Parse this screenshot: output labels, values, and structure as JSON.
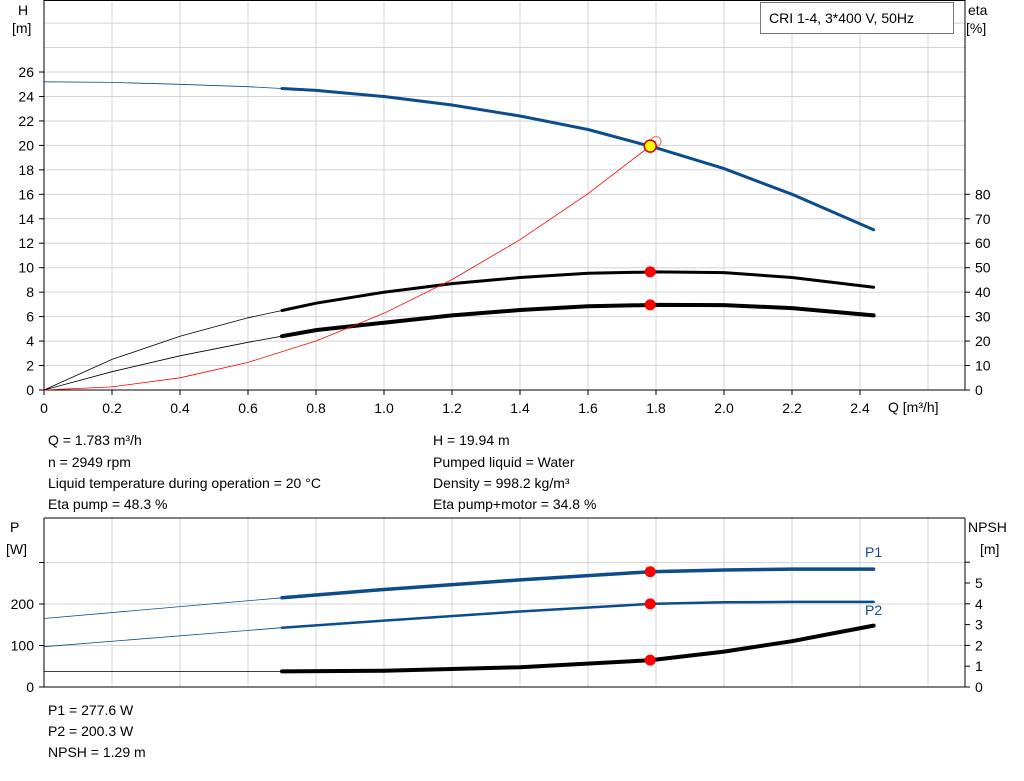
{
  "title_box": "CRI 1-4, 3*400 V, 50Hz",
  "chart_data": [
    {
      "type": "line",
      "xlabel": "Q [m³/h]",
      "ylabel": "H\n[m]",
      "ylabel_right": "eta\n[%]",
      "xlim": [
        0,
        2.7
      ],
      "ylim": [
        0,
        32
      ],
      "ylim_right_percent": [
        0,
        160
      ],
      "x_ticks": [
        "0",
        "0.2",
        "0.4",
        "0.6",
        "0.8",
        "1.0",
        "1.2",
        "1.4",
        "1.6",
        "1.8",
        "2.0",
        "2.2",
        "2.4"
      ],
      "y_ticks": [
        "0",
        "2",
        "4",
        "6",
        "8",
        "10",
        "12",
        "14",
        "16",
        "18",
        "20",
        "22",
        "24",
        "26"
      ],
      "y_right_ticks": [
        "0",
        "10",
        "20",
        "30",
        "40",
        "50",
        "60",
        "70",
        "80"
      ],
      "grid": true,
      "series": [
        {
          "key": "head",
          "axis": "left",
          "color": "#0b4c8c",
          "thick_from": 0.7,
          "x": [
            0,
            0.2,
            0.4,
            0.6,
            0.7,
            0.8,
            1.0,
            1.2,
            1.4,
            1.6,
            1.8,
            2.0,
            2.2,
            2.44
          ],
          "y": [
            25.2,
            25.15,
            25.0,
            24.8,
            24.65,
            24.5,
            24.0,
            23.3,
            22.4,
            21.3,
            19.8,
            18.1,
            16.0,
            13.1
          ]
        },
        {
          "key": "eta_pump",
          "axis": "right",
          "color": "#000000",
          "thick_from": 0.7,
          "x": [
            0,
            0.2,
            0.4,
            0.6,
            0.7,
            0.8,
            1.0,
            1.2,
            1.4,
            1.6,
            1.8,
            2.0,
            2.2,
            2.44
          ],
          "y": [
            0,
            12.5,
            22,
            29.5,
            32.5,
            35.5,
            40,
            43.5,
            46,
            47.7,
            48.3,
            48,
            46,
            42
          ]
        },
        {
          "key": "eta_pump_motor",
          "axis": "right",
          "color": "#000000",
          "thick_from": 0.7,
          "x": [
            0,
            0.2,
            0.4,
            0.6,
            0.7,
            0.8,
            1.0,
            1.2,
            1.4,
            1.6,
            1.8,
            2.0,
            2.2,
            2.44
          ],
          "y": [
            0,
            7.5,
            14,
            19.5,
            22,
            24.5,
            27.5,
            30.5,
            32.7,
            34.2,
            34.8,
            34.7,
            33.5,
            30.5
          ]
        },
        {
          "key": "system_curve",
          "axis": "left",
          "color": "#ff0000",
          "x": [
            0,
            0.2,
            0.4,
            0.6,
            0.8,
            1.0,
            1.2,
            1.4,
            1.6,
            1.8
          ],
          "y": [
            0,
            0.25,
            1.0,
            2.26,
            4.01,
            6.27,
            9.03,
            12.29,
            16.05,
            20.31
          ]
        }
      ],
      "duty_point": {
        "q": 1.783,
        "h": 19.94,
        "eta_pump": 48.3,
        "eta_pump_motor": 34.8
      }
    },
    {
      "type": "line",
      "ylabel": "P\n[W]",
      "ylabel_right": "NPSH\n[m]",
      "xlim": [
        0,
        2.7
      ],
      "ylim": [
        0,
        350
      ],
      "y_ticks": [
        "0",
        "100",
        "200"
      ],
      "y_right_ticks": [
        "0",
        "1",
        "2",
        "3",
        "4",
        "5"
      ],
      "grid": true,
      "series": [
        {
          "key": "p1",
          "name": "P1",
          "axis": "left",
          "color": "#0b4c8c",
          "thick_from": 0.7,
          "x": [
            0,
            0.7,
            1.0,
            1.4,
            1.783,
            2.0,
            2.2,
            2.44
          ],
          "y": [
            165,
            215,
            235,
            258,
            277.6,
            282,
            284,
            284
          ]
        },
        {
          "key": "p2",
          "name": "P2",
          "axis": "left",
          "color": "#0b4c8c",
          "thick_from": 0.7,
          "x": [
            0,
            0.7,
            1.0,
            1.4,
            1.783,
            2.0,
            2.2,
            2.44
          ],
          "y": [
            97,
            143,
            160,
            182,
            200.3,
            204,
            205,
            205
          ]
        },
        {
          "key": "npsh",
          "axis": "right",
          "color": "#000000",
          "thick_from": 0.7,
          "x": [
            0,
            0.7,
            1.0,
            1.4,
            1.783,
            2.0,
            2.2,
            2.44
          ],
          "y": [
            0.75,
            0.75,
            0.78,
            0.95,
            1.29,
            1.7,
            2.2,
            2.95
          ]
        }
      ],
      "duty_point": {
        "q": 1.783,
        "p1": 277.6,
        "p2": 200.3,
        "npsh": 1.29
      }
    }
  ],
  "info": {
    "q": "Q = 1.783 m³/h",
    "n": "n = 2949 rpm",
    "temp": "Liquid temperature during operation = 20 °C",
    "eta_pump": "Eta pump = 48.3 %",
    "h": "H = 19.94 m",
    "liquid": "Pumped liquid = Water",
    "density": "Density = 998.2 kg/m³",
    "eta_total": "Eta pump+motor = 34.8 %",
    "p1": "P1 = 277.6 W",
    "p2": "P2 = 200.3 W",
    "npsh": "NPSH = 1.29 m"
  },
  "labels": {
    "h": "H",
    "h_unit": "[m]",
    "eta": "eta",
    "eta_unit": "[%]",
    "q": "Q [m³/h]",
    "p": "P",
    "p_unit": "[W]",
    "npsh": "NPSH",
    "npsh_unit": "[m]",
    "p1": "P1",
    "p2": "P2"
  }
}
